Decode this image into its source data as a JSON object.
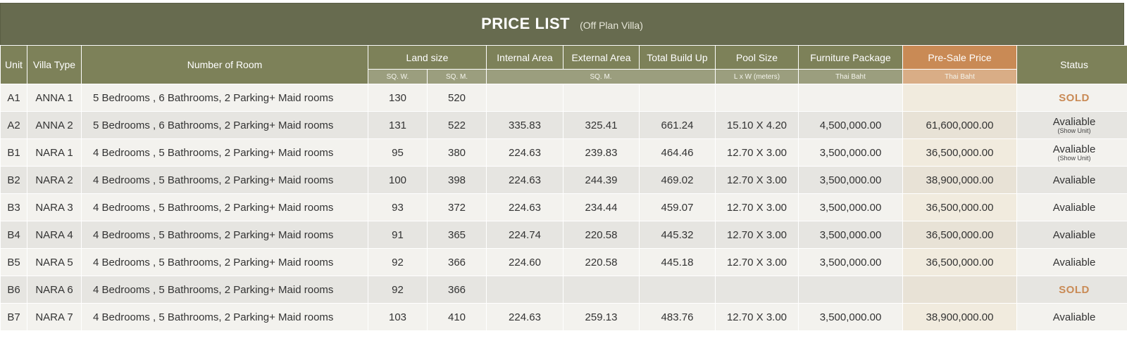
{
  "title": "PRICE LIST",
  "subtitle": "(Off Plan Villa)",
  "headers": {
    "unit": "Unit",
    "villa_type": "Villa Type",
    "rooms": "Number of Room",
    "land_size": "Land size",
    "internal_area": "Internal Area",
    "external_area": "External Area",
    "total_build_up": "Total Build Up",
    "pool_size": "Pool Size",
    "furniture_package": "Furniture Package",
    "presale_price": "Pre-Sale Price",
    "status": "Status"
  },
  "subheaders": {
    "land_sqw": "SQ. W.",
    "land_sqm": "SQ. M.",
    "area_sqm": "SQ. M.",
    "pool_dims": "L x W (meters)",
    "furniture_currency": "Thai Baht",
    "presale_currency": "Thai Baht"
  },
  "rows": [
    {
      "unit": "A1",
      "type": "ANNA 1",
      "rooms": "5 Bedrooms , 6 Bathrooms, 2 Parking+ Maid rooms",
      "sqw": "130",
      "sqm": "520",
      "internal": "",
      "external": "",
      "total": "",
      "pool": "",
      "furniture": "",
      "price": "",
      "status": "SOLD",
      "status_note": ""
    },
    {
      "unit": "A2",
      "type": "ANNA 2",
      "rooms": "5 Bedrooms , 6 Bathrooms, 2 Parking+ Maid rooms",
      "sqw": "131",
      "sqm": "522",
      "internal": "335.83",
      "external": "325.41",
      "total": "661.24",
      "pool": "15.10 X 4.20",
      "furniture": "4,500,000.00",
      "price": "61,600,000.00",
      "status": "Avaliable",
      "status_note": "(Show Unit)"
    },
    {
      "unit": "B1",
      "type": "NARA 1",
      "rooms": "4 Bedrooms , 5 Bathrooms, 2 Parking+ Maid rooms",
      "sqw": "95",
      "sqm": "380",
      "internal": "224.63",
      "external": "239.83",
      "total": "464.46",
      "pool": "12.70 X 3.00",
      "furniture": "3,500,000.00",
      "price": "36,500,000.00",
      "status": "Avaliable",
      "status_note": "(Show Unit)"
    },
    {
      "unit": "B2",
      "type": "NARA 2",
      "rooms": "4 Bedrooms , 5 Bathrooms, 2 Parking+ Maid rooms",
      "sqw": "100",
      "sqm": "398",
      "internal": "224.63",
      "external": "244.39",
      "total": "469.02",
      "pool": "12.70 X 3.00",
      "furniture": "3,500,000.00",
      "price": "38,900,000.00",
      "status": "Avaliable",
      "status_note": ""
    },
    {
      "unit": "B3",
      "type": "NARA 3",
      "rooms": "4 Bedrooms , 5 Bathrooms, 2 Parking+ Maid rooms",
      "sqw": "93",
      "sqm": "372",
      "internal": "224.63",
      "external": "234.44",
      "total": "459.07",
      "pool": "12.70 X 3.00",
      "furniture": "3,500,000.00",
      "price": "36,500,000.00",
      "status": "Avaliable",
      "status_note": ""
    },
    {
      "unit": "B4",
      "type": "NARA 4",
      "rooms": "4 Bedrooms , 5 Bathrooms, 2 Parking+ Maid rooms",
      "sqw": "91",
      "sqm": "365",
      "internal": "224.74",
      "external": "220.58",
      "total": "445.32",
      "pool": "12.70 X 3.00",
      "furniture": "3,500,000.00",
      "price": "36,500,000.00",
      "status": "Avaliable",
      "status_note": ""
    },
    {
      "unit": "B5",
      "type": "NARA 5",
      "rooms": "4 Bedrooms , 5 Bathrooms, 2 Parking+ Maid rooms",
      "sqw": "92",
      "sqm": "366",
      "internal": "224.60",
      "external": "220.58",
      "total": "445.18",
      "pool": "12.70 X 3.00",
      "furniture": "3,500,000.00",
      "price": "36,500,000.00",
      "status": "Avaliable",
      "status_note": ""
    },
    {
      "unit": "B6",
      "type": "NARA 6",
      "rooms": "4 Bedrooms , 5 Bathrooms, 2 Parking+ Maid rooms",
      "sqw": "92",
      "sqm": "366",
      "internal": "",
      "external": "",
      "total": "",
      "pool": "",
      "furniture": "",
      "price": "",
      "status": "SOLD",
      "status_note": ""
    },
    {
      "unit": "B7",
      "type": "NARA 7",
      "rooms": "4 Bedrooms , 5 Bathrooms, 2 Parking+ Maid rooms",
      "sqw": "103",
      "sqm": "410",
      "internal": "224.63",
      "external": "259.13",
      "total": "483.76",
      "pool": "12.70 X 3.00",
      "furniture": "3,500,000.00",
      "price": "38,900,000.00",
      "status": "Avaliable",
      "status_note": ""
    }
  ],
  "colors": {
    "title_bg": "#676b4f",
    "header_bg": "#7d8159",
    "presale_header": "#c98a55",
    "sold_text": "#c98a55"
  }
}
